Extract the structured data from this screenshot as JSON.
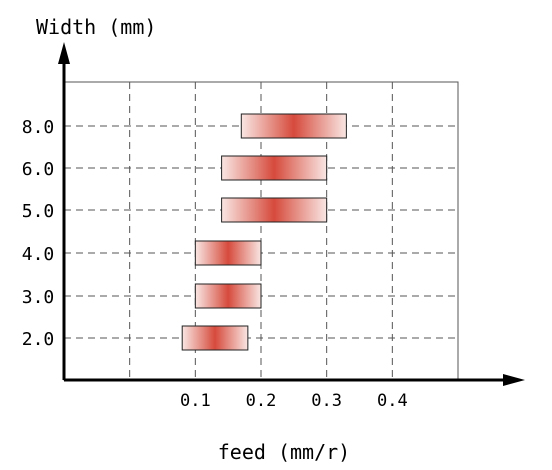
{
  "chart_data": {
    "type": "bar",
    "orientation": "horizontal-range",
    "title": "",
    "ylabel": "Width (mm)",
    "xlabel": "feed (mm/r)",
    "x_ticks": [
      "0.1",
      "0.2",
      "0.3",
      "0.4"
    ],
    "x_tick_values": [
      0.1,
      0.2,
      0.3,
      0.4
    ],
    "xlim": [
      -0.1,
      0.5
    ],
    "y_tick_labels": [
      "8.0",
      "6.0",
      "5.0",
      "4.0",
      "3.0",
      "2.0"
    ],
    "grid": true,
    "legend": "none",
    "bar_color": "#d64a3c",
    "bar_edge_color": "#f9e6e3",
    "ranges": [
      {
        "width": "8.0",
        "min": 0.17,
        "max": 0.33
      },
      {
        "width": "6.0",
        "min": 0.14,
        "max": 0.3
      },
      {
        "width": "5.0",
        "min": 0.14,
        "max": 0.3
      },
      {
        "width": "4.0",
        "min": 0.1,
        "max": 0.2
      },
      {
        "width": "3.0",
        "min": 0.1,
        "max": 0.2
      },
      {
        "width": "2.0",
        "min": 0.08,
        "max": 0.18
      }
    ]
  }
}
